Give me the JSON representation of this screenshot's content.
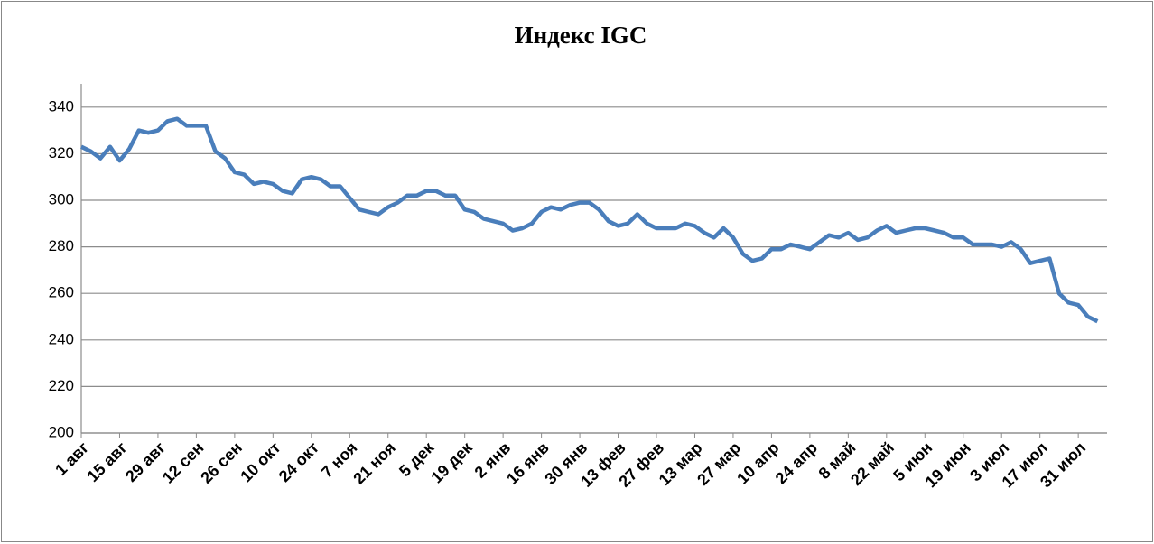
{
  "chart_data": {
    "type": "line",
    "title": "Индекс IGC",
    "categories": [
      "1 авг",
      null,
      null,
      null,
      "15 авг",
      null,
      null,
      null,
      "29 авг",
      null,
      null,
      null,
      "12 сен",
      null,
      null,
      null,
      "26 сен",
      null,
      null,
      null,
      "10 окт",
      null,
      null,
      null,
      "24 окт",
      null,
      null,
      null,
      "7 ноя",
      null,
      null,
      null,
      "21 ноя",
      null,
      null,
      null,
      "5 дек",
      null,
      null,
      null,
      "19 дек",
      null,
      null,
      null,
      "2 янв",
      null,
      null,
      null,
      "16 янв",
      null,
      null,
      null,
      "30 янв",
      null,
      null,
      null,
      "13 фев",
      null,
      null,
      null,
      "27 фев",
      null,
      null,
      null,
      "13 мар",
      null,
      null,
      null,
      "27 мар",
      null,
      null,
      null,
      "10 апр",
      null,
      null,
      null,
      "24 апр",
      null,
      null,
      null,
      "8 май",
      null,
      null,
      null,
      "22 май",
      null,
      null,
      null,
      "5 июн",
      null,
      null,
      null,
      "19 июн",
      null,
      null,
      null,
      "3 июл",
      null,
      null,
      null,
      "17 июл",
      null,
      null,
      null,
      "31 июл",
      null,
      null
    ],
    "series": [
      {
        "name": "Индекс IGC",
        "color": "#4a7ebb",
        "values": [
          323,
          321,
          318,
          323,
          317,
          322,
          330,
          329,
          330,
          334,
          335,
          332,
          332,
          332,
          321,
          318,
          312,
          311,
          307,
          308,
          307,
          304,
          303,
          309,
          310,
          309,
          306,
          306,
          301,
          296,
          295,
          294,
          297,
          299,
          302,
          302,
          304,
          304,
          302,
          302,
          296,
          295,
          292,
          291,
          290,
          287,
          288,
          290,
          295,
          297,
          296,
          298,
          299,
          299,
          296,
          291,
          289,
          290,
          294,
          290,
          288,
          288,
          288,
          290,
          289,
          286,
          284,
          288,
          284,
          277,
          274,
          275,
          279,
          279,
          281,
          280,
          279,
          282,
          285,
          284,
          286,
          283,
          284,
          287,
          289,
          286,
          287,
          288,
          288,
          287,
          286,
          284,
          284,
          281,
          281,
          281,
          280,
          282,
          279,
          273,
          274,
          275,
          260,
          256,
          255,
          250,
          248
        ]
      }
    ],
    "ylim": [
      200,
      350
    ],
    "yticks": [
      200,
      220,
      240,
      260,
      280,
      300,
      320,
      340
    ],
    "grid": true
  }
}
